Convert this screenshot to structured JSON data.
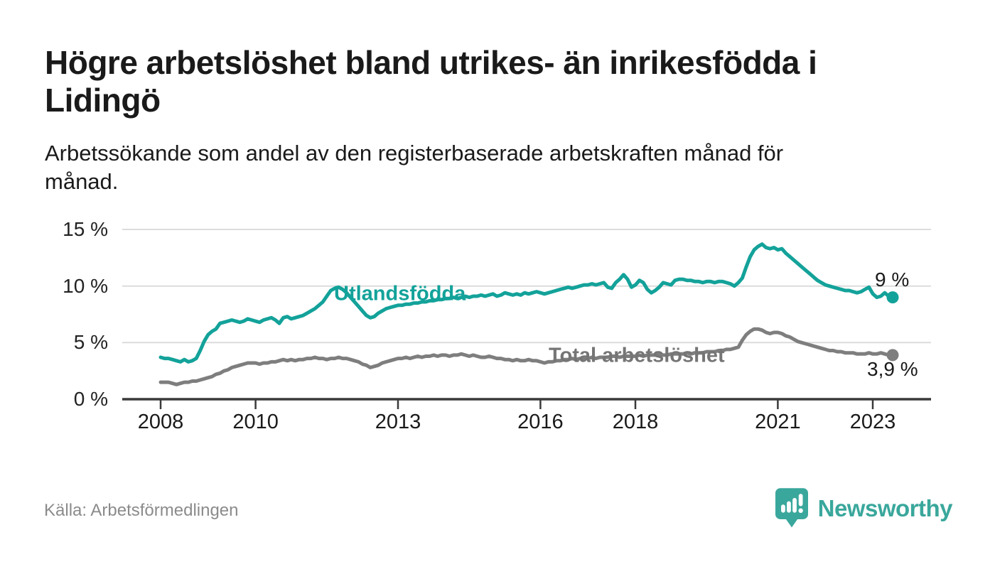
{
  "header": {
    "title_line1": "Högre arbetslöshet bland utrikes- än inrikesfödda i",
    "title_line2": "Lidingö",
    "subtitle_line1": "Arbetssökande som andel av den registerbaserade arbetskraften månad för",
    "subtitle_line2": "månad."
  },
  "footer": {
    "source": "Källa: Arbetsförmedlingen",
    "brand": "Newsworthy"
  },
  "colors": {
    "teal": "#13a29a",
    "gray": "#7e7e7e",
    "series_label_gray": "#757575",
    "axis": "#3a3a3a",
    "grid": "#dcdcdc",
    "brand_teal": "#3aa79c",
    "text_dark": "#1a1a1a",
    "source_gray": "#8b8b8b"
  },
  "chart_data": {
    "type": "line",
    "title": "Högre arbetslöshet bland utrikes- än inrikesfödda i Lidingö",
    "subtitle": "Arbetssökande som andel av den registerbaserade arbetskraften månad för månad.",
    "x_unit": "month",
    "x_start": "2008-01",
    "x_end": "2023-06",
    "ylim": [
      0,
      15
    ],
    "yticks": [
      0,
      5,
      10,
      15
    ],
    "ytick_labels": [
      "0 %",
      "5 %",
      "10 %",
      "15 %"
    ],
    "xtick_years": [
      2008,
      2010,
      2013,
      2016,
      2018,
      2021,
      2023
    ],
    "xtick_labels": [
      "2008",
      "2010",
      "2013",
      "2016",
      "2018",
      "2021",
      "2023"
    ],
    "grid": "horizontal",
    "legend": "inline-labels",
    "series": [
      {
        "name": "Utlandsfödda",
        "color": "#13a29a",
        "end_label": "9 %",
        "end_value": 9.0,
        "values": [
          3.7,
          3.6,
          3.6,
          3.5,
          3.4,
          3.3,
          3.5,
          3.3,
          3.4,
          3.6,
          4.3,
          5.1,
          5.7,
          6.0,
          6.2,
          6.7,
          6.8,
          6.9,
          7.0,
          6.9,
          6.8,
          6.9,
          7.1,
          7.0,
          6.9,
          6.8,
          7.0,
          7.1,
          7.2,
          7.0,
          6.7,
          7.2,
          7.3,
          7.1,
          7.2,
          7.3,
          7.4,
          7.6,
          7.8,
          8.0,
          8.3,
          8.6,
          9.1,
          9.6,
          9.8,
          9.9,
          9.7,
          9.4,
          9.0,
          8.6,
          8.2,
          7.8,
          7.4,
          7.2,
          7.3,
          7.6,
          7.8,
          8.0,
          8.1,
          8.2,
          8.3,
          8.3,
          8.4,
          8.4,
          8.5,
          8.5,
          8.6,
          8.6,
          8.7,
          8.7,
          8.8,
          8.8,
          8.9,
          8.9,
          9.0,
          8.9,
          9.0,
          9.1,
          9.0,
          9.1,
          9.1,
          9.2,
          9.1,
          9.2,
          9.3,
          9.1,
          9.2,
          9.4,
          9.3,
          9.2,
          9.3,
          9.2,
          9.4,
          9.3,
          9.4,
          9.5,
          9.4,
          9.3,
          9.4,
          9.5,
          9.6,
          9.7,
          9.8,
          9.9,
          9.8,
          9.9,
          10.0,
          10.1,
          10.1,
          10.2,
          10.1,
          10.2,
          10.3,
          9.9,
          9.8,
          10.3,
          10.6,
          11.0,
          10.6,
          9.9,
          10.1,
          10.5,
          10.3,
          9.7,
          9.4,
          9.6,
          9.9,
          10.3,
          10.2,
          10.1,
          10.5,
          10.6,
          10.6,
          10.5,
          10.5,
          10.4,
          10.4,
          10.3,
          10.4,
          10.4,
          10.3,
          10.4,
          10.4,
          10.3,
          10.2,
          10.0,
          10.3,
          10.7,
          11.7,
          12.6,
          13.2,
          13.5,
          13.7,
          13.4,
          13.3,
          13.4,
          13.2,
          13.3,
          12.9,
          12.6,
          12.3,
          12.0,
          11.7,
          11.4,
          11.1,
          10.8,
          10.5,
          10.3,
          10.1,
          10.0,
          9.9,
          9.8,
          9.7,
          9.6,
          9.6,
          9.5,
          9.4,
          9.5,
          9.7,
          9.9,
          9.3,
          9.0,
          9.1,
          9.4,
          9.1,
          9.0
        ]
      },
      {
        "name": "Total arbetslöshet",
        "color": "#7e7e7e",
        "end_label": "3,9 %",
        "end_value": 3.9,
        "values": [
          1.5,
          1.5,
          1.5,
          1.4,
          1.3,
          1.4,
          1.5,
          1.5,
          1.6,
          1.6,
          1.7,
          1.8,
          1.9,
          2.0,
          2.2,
          2.3,
          2.5,
          2.6,
          2.8,
          2.9,
          3.0,
          3.1,
          3.2,
          3.2,
          3.2,
          3.1,
          3.2,
          3.2,
          3.3,
          3.3,
          3.4,
          3.5,
          3.4,
          3.5,
          3.4,
          3.5,
          3.5,
          3.6,
          3.6,
          3.7,
          3.6,
          3.6,
          3.5,
          3.6,
          3.6,
          3.7,
          3.6,
          3.6,
          3.5,
          3.4,
          3.3,
          3.1,
          3.0,
          2.8,
          2.9,
          3.0,
          3.2,
          3.3,
          3.4,
          3.5,
          3.6,
          3.6,
          3.7,
          3.6,
          3.7,
          3.8,
          3.7,
          3.8,
          3.8,
          3.9,
          3.8,
          3.9,
          3.9,
          3.8,
          3.9,
          3.9,
          4.0,
          3.9,
          3.8,
          3.9,
          3.8,
          3.7,
          3.7,
          3.8,
          3.7,
          3.6,
          3.6,
          3.5,
          3.5,
          3.4,
          3.5,
          3.4,
          3.4,
          3.5,
          3.4,
          3.4,
          3.3,
          3.2,
          3.3,
          3.3,
          3.4,
          3.4,
          3.5,
          3.5,
          3.6,
          3.5,
          3.6,
          3.6,
          3.6,
          3.7,
          3.6,
          3.7,
          3.7,
          3.7,
          3.8,
          3.8,
          3.7,
          3.8,
          3.8,
          3.8,
          3.8,
          3.9,
          3.8,
          3.9,
          3.9,
          3.9,
          4.0,
          3.9,
          3.9,
          4.0,
          4.0,
          4.0,
          4.0,
          4.1,
          4.0,
          4.1,
          4.1,
          4.1,
          4.2,
          4.2,
          4.2,
          4.3,
          4.3,
          4.4,
          4.4,
          4.5,
          4.6,
          5.2,
          5.7,
          6.0,
          6.2,
          6.2,
          6.1,
          5.9,
          5.8,
          5.9,
          5.9,
          5.8,
          5.6,
          5.5,
          5.3,
          5.1,
          5.0,
          4.9,
          4.8,
          4.7,
          4.6,
          4.5,
          4.4,
          4.3,
          4.3,
          4.2,
          4.2,
          4.1,
          4.1,
          4.1,
          4.0,
          4.0,
          4.0,
          4.1,
          4.0,
          4.0,
          4.1,
          4.0,
          3.9,
          3.9
        ]
      }
    ]
  }
}
